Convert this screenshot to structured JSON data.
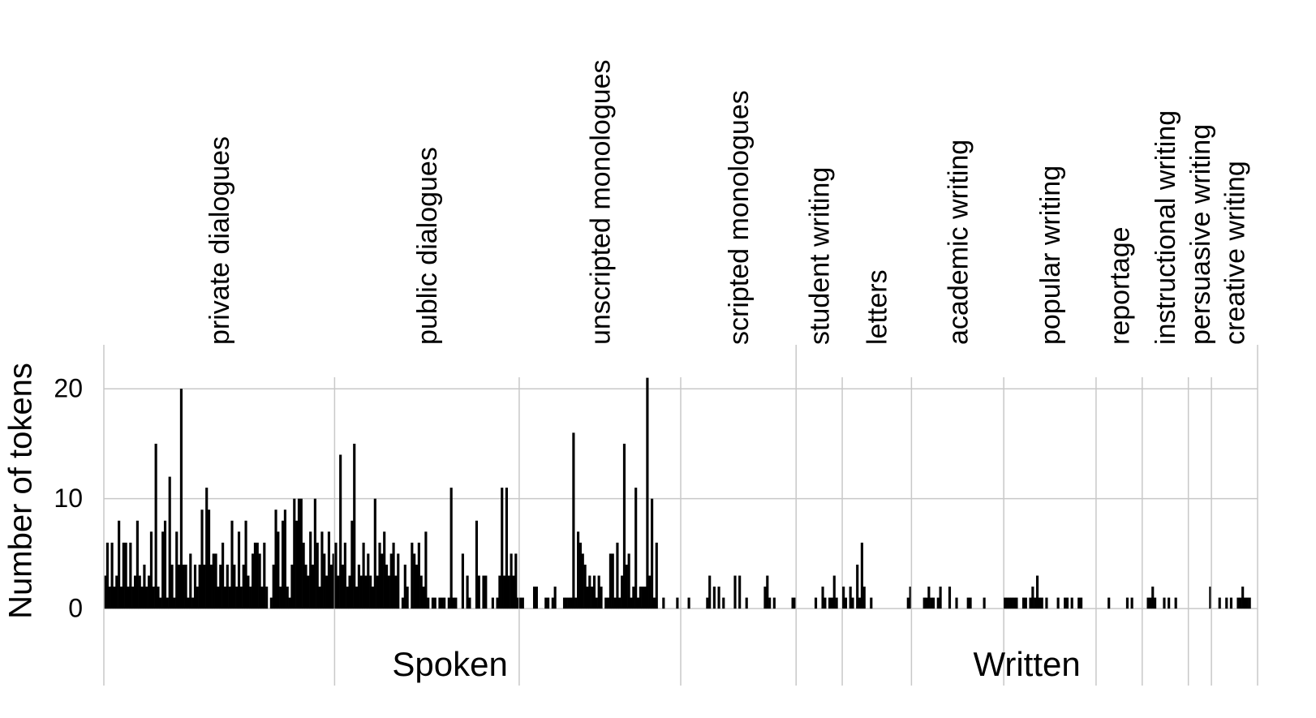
{
  "chart_data": {
    "type": "bar",
    "ylabel": "Number of tokens",
    "ylim": [
      -7,
      24
    ],
    "yticks": [
      0,
      10,
      20
    ],
    "grid": true,
    "color": "#000000",
    "modes": [
      {
        "name": "Spoken",
        "groups": [
          {
            "name": "private dialogues",
            "values": [
              3,
              6,
              2,
              6,
              2,
              3,
              8,
              2,
              6,
              6,
              2,
              6,
              2,
              3,
              8,
              3,
              2,
              4,
              2,
              3,
              7,
              2,
              15,
              2,
              1,
              7,
              8,
              1,
              12,
              4,
              1,
              7,
              4,
              20,
              4,
              4,
              1,
              5,
              1,
              4,
              2,
              4,
              9,
              4,
              11,
              9,
              4,
              5,
              5,
              2,
              4,
              6,
              2,
              4,
              2,
              8,
              4,
              2,
              7,
              2,
              4,
              8,
              3,
              2,
              5,
              6,
              6,
              5,
              2,
              6,
              2,
              0,
              1,
              4,
              9,
              7,
              2,
              8,
              9,
              2,
              1,
              4,
              10,
              8,
              10,
              10,
              6,
              4,
              3,
              7,
              4,
              10,
              6,
              2,
              7,
              5,
              3,
              7,
              4,
              5
            ]
          },
          {
            "name": "public dialogues",
            "values": [
              6,
              3,
              14,
              4,
              6,
              2,
              3,
              8,
              15,
              2,
              4,
              3,
              6,
              3,
              5,
              3,
              2,
              10,
              3,
              6,
              5,
              7,
              4,
              3,
              5,
              6,
              3,
              5,
              0,
              1,
              4,
              2,
              0,
              6,
              5,
              4,
              6,
              3,
              2,
              7,
              1,
              0,
              1,
              1,
              0,
              1,
              1,
              1,
              0,
              1,
              11,
              1,
              1,
              0,
              0,
              5,
              0,
              3,
              1,
              0,
              0,
              8,
              3,
              0,
              3,
              3,
              0,
              0,
              1,
              0,
              1,
              3,
              11,
              3,
              11,
              3,
              5,
              3,
              5,
              1
            ]
          },
          {
            "name": "unscripted monologues",
            "values": [
              1,
              1,
              0,
              0,
              0,
              0,
              2,
              2,
              0,
              0,
              0,
              1,
              1,
              0,
              1,
              2,
              0,
              0,
              0,
              1,
              1,
              1,
              1,
              16,
              1,
              7,
              6,
              5,
              4,
              2,
              3,
              2,
              3,
              1,
              3,
              2,
              0,
              1,
              1,
              5,
              5,
              1,
              6,
              1,
              3,
              15,
              4,
              5,
              1,
              2,
              11,
              1,
              2,
              2,
              2,
              21,
              3,
              10,
              1,
              6,
              0,
              0,
              1,
              0,
              0,
              0,
              0,
              0,
              1,
              0
            ]
          },
          {
            "name": "scripted monologues",
            "values": [
              0,
              0,
              0,
              1,
              0,
              0,
              0,
              0,
              0,
              0,
              0,
              1,
              3,
              0,
              2,
              0,
              2,
              0,
              1,
              0,
              0,
              0,
              0,
              3,
              0,
              3,
              0,
              0,
              1,
              0,
              0,
              0,
              0,
              0,
              0,
              0,
              2,
              3,
              1,
              0,
              1,
              0,
              0,
              0,
              0,
              0,
              0,
              0,
              1,
              1
            ]
          }
        ]
      },
      {
        "name": "Written",
        "groups": [
          {
            "name": "student writing",
            "values": [
              0,
              0,
              0,
              0,
              0,
              0,
              0,
              0,
              1,
              0,
              0,
              2,
              1,
              0,
              1,
              1,
              3,
              1,
              0,
              0
            ]
          },
          {
            "name": "letters",
            "values": [
              2,
              1,
              0,
              2,
              1,
              0,
              4,
              1,
              6,
              2,
              0,
              0,
              1,
              0,
              0,
              0,
              0,
              0,
              0,
              0,
              0,
              0,
              0,
              0,
              0,
              0,
              0,
              0,
              1,
              2
            ]
          },
          {
            "name": "academic writing",
            "values": [
              0,
              0,
              0,
              0,
              0,
              1,
              1,
              2,
              1,
              1,
              0,
              1,
              2,
              0,
              0,
              0,
              2,
              0,
              0,
              1,
              0,
              0,
              0,
              0,
              1,
              1,
              0,
              0,
              0,
              0,
              0,
              1,
              0,
              0,
              0,
              0,
              0,
              0,
              0,
              0
            ]
          },
          {
            "name": "popular writing",
            "values": [
              1,
              1,
              1,
              1,
              1,
              1,
              0,
              0,
              1,
              1,
              0,
              1,
              2,
              1,
              3,
              1,
              1,
              0,
              1,
              0,
              0,
              0,
              0,
              1,
              0,
              0,
              1,
              1,
              0,
              1,
              0,
              0,
              1,
              1,
              0,
              0,
              0,
              0,
              0,
              0
            ]
          },
          {
            "name": "reportage",
            "values": [
              0,
              0,
              0,
              0,
              0,
              1,
              0,
              0,
              0,
              0,
              0,
              0,
              0,
              1,
              0,
              1,
              0,
              0,
              0,
              0
            ]
          },
          {
            "name": "instructional writing",
            "values": [
              0,
              0,
              1,
              1,
              2,
              1,
              0,
              0,
              0,
              1,
              0,
              1,
              0,
              0,
              1,
              0,
              0,
              0,
              0,
              0
            ]
          },
          {
            "name": "persuasive writing",
            "values": [
              0,
              0,
              0,
              0,
              0,
              0,
              0,
              0,
              0,
              2
            ]
          },
          {
            "name": "creative writing",
            "values": [
              0,
              0,
              0,
              1,
              0,
              0,
              1,
              0,
              1,
              0,
              0,
              1,
              1,
              2,
              1,
              1,
              1,
              0,
              0,
              0
            ]
          }
        ]
      }
    ]
  }
}
